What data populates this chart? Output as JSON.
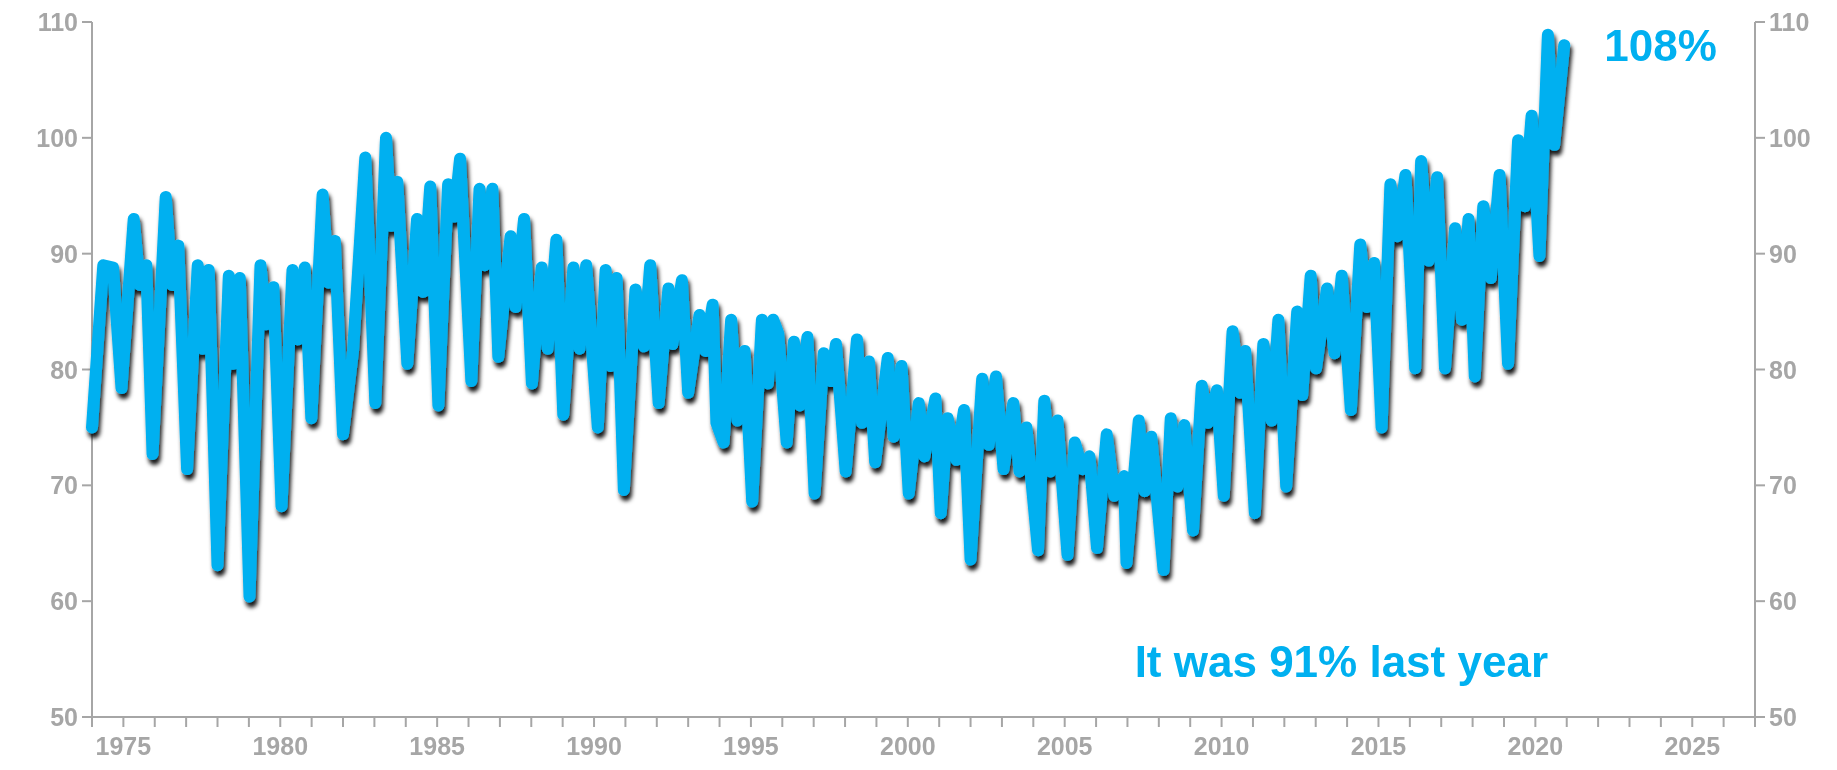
{
  "chart_data": {
    "type": "line",
    "line_style": "solid",
    "marker": "none",
    "grid": false,
    "xlim": [
      1974,
      2027
    ],
    "xticks": [
      {
        "value": 1974,
        "label": null
      },
      1975,
      {
        "value": 1976,
        "label": null
      },
      {
        "value": 1977,
        "label": null
      },
      {
        "value": 1978,
        "label": null
      },
      {
        "value": 1979,
        "label": null
      },
      1980,
      {
        "value": 1981,
        "label": null
      },
      {
        "value": 1982,
        "label": null
      },
      {
        "value": 1983,
        "label": null
      },
      {
        "value": 1984,
        "label": null
      },
      1985,
      {
        "value": 1986,
        "label": null
      },
      {
        "value": 1987,
        "label": null
      },
      {
        "value": 1988,
        "label": null
      },
      {
        "value": 1989,
        "label": null
      },
      1990,
      {
        "value": 1991,
        "label": null
      },
      {
        "value": 1992,
        "label": null
      },
      {
        "value": 1993,
        "label": null
      },
      {
        "value": 1994,
        "label": null
      },
      1995,
      {
        "value": 1996,
        "label": null
      },
      {
        "value": 1997,
        "label": null
      },
      {
        "value": 1998,
        "label": null
      },
      {
        "value": 1999,
        "label": null
      },
      2000,
      {
        "value": 2001,
        "label": null
      },
      {
        "value": 2002,
        "label": null
      },
      {
        "value": 2003,
        "label": null
      },
      {
        "value": 2004,
        "label": null
      },
      2005,
      {
        "value": 2006,
        "label": null
      },
      {
        "value": 2007,
        "label": null
      },
      {
        "value": 2008,
        "label": null
      },
      {
        "value": 2009,
        "label": null
      },
      2010,
      {
        "value": 2011,
        "label": null
      },
      {
        "value": 2012,
        "label": null
      },
      {
        "value": 2013,
        "label": null
      },
      {
        "value": 2014,
        "label": null
      },
      2015,
      {
        "value": 2016,
        "label": null
      },
      {
        "value": 2017,
        "label": null
      },
      {
        "value": 2018,
        "label": null
      },
      {
        "value": 2019,
        "label": null
      },
      2020,
      {
        "value": 2021,
        "label": null
      },
      {
        "value": 2022,
        "label": null
      },
      {
        "value": 2023,
        "label": null
      },
      {
        "value": 2024,
        "label": null
      },
      2025,
      {
        "value": 2026,
        "label": null
      },
      {
        "value": 2027,
        "label": null
      }
    ],
    "ylim": [
      50,
      110
    ],
    "yticks": [
      50,
      60,
      70,
      80,
      90,
      100,
      110
    ],
    "y2lim": [
      50,
      110
    ],
    "y2ticks": [
      50,
      60,
      70,
      80,
      90,
      100,
      110
    ],
    "annotations": [
      {
        "text": "108%",
        "x": 2020.92,
        "y": 108
      },
      "It was 91% last year"
    ],
    "series": [
      {
        "color": "#00b0f0",
        "x": [
          1974.0,
          1974.36,
          1974.67,
          1974.94,
          1975.33,
          1975.52,
          1975.73,
          1975.93,
          1976.35,
          1976.55,
          1976.75,
          1977.03,
          1977.37,
          1977.53,
          1977.72,
          1978.0,
          1978.36,
          1978.5,
          1978.71,
          1979.02,
          1979.37,
          1979.55,
          1979.78,
          1980.04,
          1980.39,
          1980.56,
          1980.78,
          1980.99,
          1981.35,
          1981.54,
          1981.74,
          1982.0,
          1982.32,
          1982.71,
          1983.03,
          1983.37,
          1983.53,
          1983.73,
          1984.05,
          1984.36,
          1984.55,
          1984.78,
          1985.04,
          1985.35,
          1985.54,
          1985.73,
          1986.09,
          1986.35,
          1986.51,
          1986.76,
          1986.95,
          1987.34,
          1987.5,
          1987.77,
          1988.02,
          1988.33,
          1988.52,
          1988.8,
          1989.02,
          1989.34,
          1989.54,
          1989.75,
          1990.12,
          1990.37,
          1990.53,
          1990.72,
          1990.95,
          1991.32,
          1991.59,
          1991.79,
          1992.06,
          1992.37,
          1992.5,
          1992.8,
          1993.0,
          1993.36,
          1993.55,
          1993.78,
          1993.9,
          1994.13,
          1994.37,
          1994.57,
          1994.8,
          1995.04,
          1995.35,
          1995.54,
          1995.71,
          1995.87,
          1996.14,
          1996.37,
          1996.56,
          1996.8,
          1997.03,
          1997.32,
          1997.55,
          1997.71,
          1998.02,
          1998.38,
          1998.54,
          1998.76,
          1998.96,
          1999.36,
          1999.55,
          1999.8,
          2000.03,
          2000.35,
          2000.53,
          2000.88,
          2001.05,
          2001.27,
          2001.55,
          2001.79,
          2002.0,
          2002.37,
          2002.58,
          2002.81,
          2003.05,
          2003.36,
          2003.56,
          2003.78,
          2004.15,
          2004.35,
          2004.54,
          2004.77,
          2005.09,
          2005.32,
          2005.56,
          2005.79,
          2006.03,
          2006.34,
          2006.58,
          2006.89,
          2006.97,
          2007.36,
          2007.55,
          2007.76,
          2008.15,
          2008.38,
          2008.59,
          2008.81,
          2009.09,
          2009.37,
          2009.56,
          2009.85,
          2010.07,
          2010.35,
          2010.59,
          2010.75,
          2011.06,
          2011.33,
          2011.59,
          2011.81,
          2012.06,
          2012.41,
          2012.57,
          2012.84,
          2013.01,
          2013.36,
          2013.6,
          2013.83,
          2014.12,
          2014.42,
          2014.62,
          2014.86,
          2015.1,
          2015.38,
          2015.6,
          2015.86,
          2016.17,
          2016.36,
          2016.6,
          2016.87,
          2017.12,
          2017.44,
          2017.66,
          2017.87,
          2018.07,
          2018.34,
          2018.58,
          2018.86,
          2019.13,
          2019.45,
          2019.66,
          2019.88,
          2020.13,
          2020.4,
          2020.6,
          2020.92
        ],
        "values": [
          75,
          89.0,
          88.8,
          78.4,
          93.0,
          87.3,
          89.0,
          72.7,
          94.9,
          87.3,
          90.7,
          71.4,
          89.0,
          81.8,
          88.6,
          63.1,
          88.1,
          80.5,
          87.9,
          60.4,
          89.0,
          83.9,
          87.1,
          68.2,
          88.6,
          82.6,
          88.8,
          75.8,
          95.1,
          87.5,
          91.1,
          74.4,
          81.6,
          98.3,
          77.1,
          100.0,
          92.4,
          96.2,
          80.5,
          93.0,
          86.7,
          95.8,
          76.9,
          96.0,
          93.2,
          98.2,
          79.0,
          95.6,
          89.0,
          95.6,
          81.1,
          91.5,
          85.4,
          93.0,
          78.8,
          88.8,
          81.8,
          91.2,
          76.1,
          88.8,
          81.8,
          89.0,
          75.0,
          88.6,
          80.3,
          87.9,
          69.6,
          86.9,
          82.0,
          89.0,
          77.1,
          87.0,
          82.2,
          87.7,
          78.0,
          84.7,
          81.6,
          85.6,
          75.4,
          73.7,
          84.3,
          75.6,
          81.6,
          68.6,
          84.3,
          78.8,
          84.3,
          83.1,
          73.7,
          82.4,
          76.9,
          82.8,
          69.3,
          81.4,
          79.0,
          82.2,
          71.2,
          82.6,
          75.4,
          80.7,
          72.0,
          81.0,
          74.2,
          80.3,
          69.3,
          77.1,
          72.5,
          77.5,
          67.6,
          75.8,
          72.2,
          76.5,
          63.6,
          79.2,
          73.5,
          79.4,
          71.4,
          77.1,
          71.2,
          75.0,
          64.4,
          77.3,
          71.2,
          75.6,
          64.0,
          73.7,
          71.4,
          72.5,
          64.6,
          74.4,
          69.1,
          70.8,
          63.3,
          75.6,
          69.5,
          74.2,
          62.7,
          75.8,
          69.9,
          75.2,
          66.1,
          78.6,
          75.4,
          78.2,
          69.1,
          83.3,
          78.0,
          81.6,
          67.6,
          82.2,
          75.6,
          84.3,
          69.9,
          85.0,
          77.8,
          88.1,
          80.1,
          87.0,
          81.4,
          88.1,
          76.5,
          90.8,
          85.4,
          89.2,
          75.0,
          96.0,
          91.5,
          96.8,
          80.1,
          98.0,
          89.4,
          96.6,
          80.1,
          92.2,
          84.3,
          93.0,
          79.4,
          94.1,
          87.9,
          96.8,
          80.5,
          99.8,
          94.1,
          101.9,
          89.8,
          108.9,
          99.4,
          108
        ]
      }
    ]
  }
}
